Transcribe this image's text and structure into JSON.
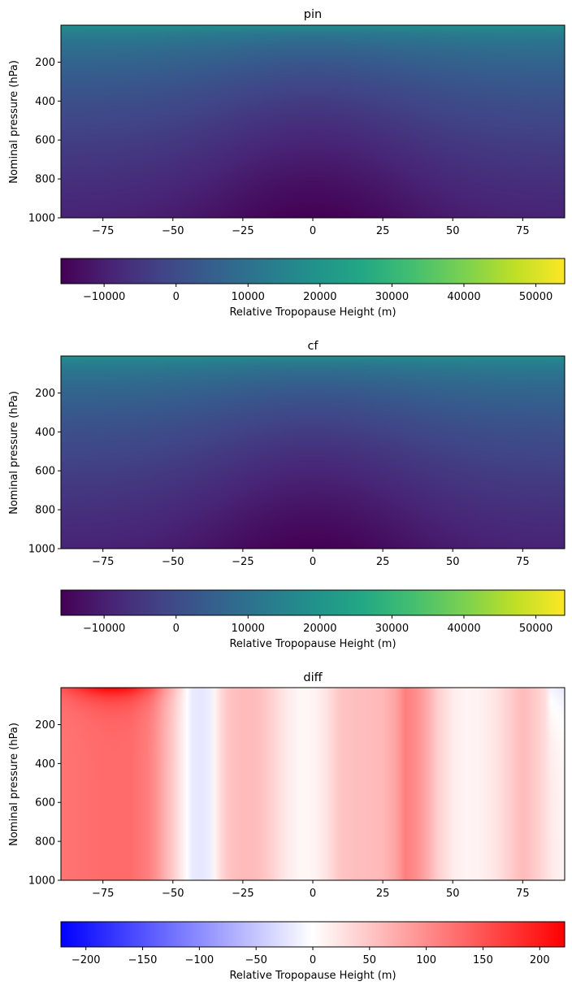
{
  "chart_data": [
    {
      "type": "heatmap",
      "title": "pin",
      "ylabel": "Nominal pressure (hPa)",
      "xlabel": "",
      "xlim": [
        -90,
        90
      ],
      "ylim": [
        1000,
        10
      ],
      "x_ticks": [
        -75,
        -50,
        -25,
        0,
        25,
        50,
        75
      ],
      "y_ticks": [
        200,
        400,
        600,
        800,
        1000
      ],
      "colormap": "viridis",
      "colorbar": {
        "label": "Relative Tropopause Height (m)",
        "range": [
          -16000,
          54000
        ],
        "ticks": [
          -10000,
          0,
          10000,
          20000,
          30000,
          40000,
          50000
        ],
        "orientation": "horizontal"
      },
      "field_description": "approx. 22000 at 10 hPa near all latitudes, decreasing with pressure; minimum about -16000 near 1000 hPa at the equator; about -9000 near 1000 hPa at the poles"
    },
    {
      "type": "heatmap",
      "title": "cf",
      "ylabel": "Nominal pressure (hPa)",
      "xlabel": "",
      "xlim": [
        -90,
        90
      ],
      "ylim": [
        1000,
        10
      ],
      "x_ticks": [
        -75,
        -50,
        -25,
        0,
        25,
        50,
        75
      ],
      "y_ticks": [
        200,
        400,
        600,
        800,
        1000
      ],
      "colormap": "viridis",
      "colorbar": {
        "label": "Relative Tropopause Height (m)",
        "range": [
          -16000,
          54000
        ],
        "ticks": [
          -10000,
          0,
          10000,
          20000,
          30000,
          40000,
          50000
        ],
        "orientation": "horizontal"
      }
    },
    {
      "type": "heatmap",
      "title": "diff",
      "ylabel": "Nominal pressure (hPa)",
      "xlabel": "",
      "xlim": [
        -90,
        90
      ],
      "ylim": [
        1000,
        10
      ],
      "x_ticks": [
        -75,
        -50,
        -25,
        0,
        25,
        50,
        75
      ],
      "y_ticks": [
        200,
        400,
        600,
        800,
        1000
      ],
      "colormap": "bwr",
      "colorbar": {
        "label": "Relative Tropopause Height (m)",
        "range": [
          -222,
          222
        ],
        "ticks": [
          -200,
          -150,
          -100,
          -50,
          0,
          50,
          100,
          150,
          200
        ],
        "orientation": "horizontal"
      },
      "column_profile": {
        "lat": [
          -90,
          -80,
          -72,
          -65,
          -58,
          -52,
          -48,
          -46,
          -43,
          -40,
          -37,
          -34,
          -32,
          -30,
          -25,
          -20,
          -15,
          -10,
          -5,
          0,
          5,
          10,
          15,
          20,
          25,
          30,
          33,
          37,
          40,
          45,
          50,
          55,
          60,
          65,
          70,
          75,
          80,
          85,
          90
        ],
        "diff": [
          120,
          126,
          130,
          128,
          110,
          62,
          28,
          8,
          -18,
          -22,
          -15,
          22,
          40,
          52,
          60,
          58,
          42,
          20,
          8,
          8,
          25,
          52,
          56,
          58,
          62,
          82,
          112,
          98,
          80,
          40,
          16,
          10,
          12,
          22,
          42,
          60,
          44,
          20,
          8
        ]
      },
      "top_enhancement": "stronger red near 10 hPa, max about 222 near -70",
      "right_top_anomaly": "slightly negative near 88 at top"
    }
  ]
}
